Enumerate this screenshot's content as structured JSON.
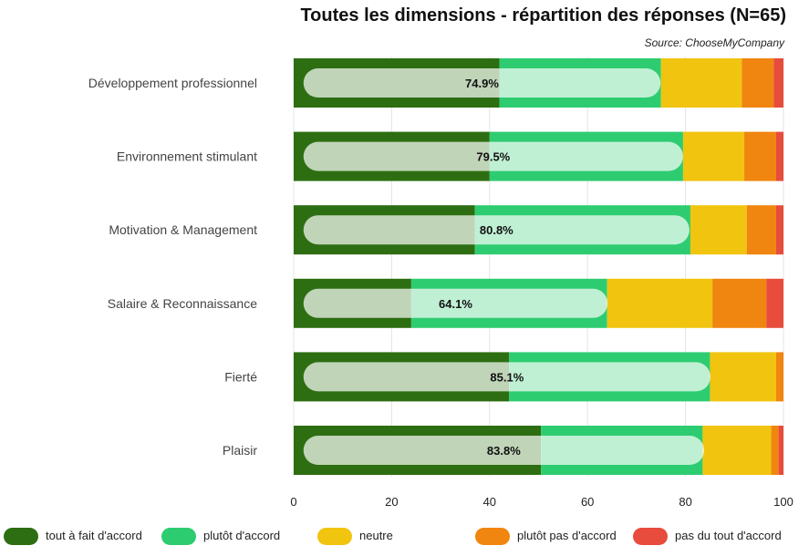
{
  "chart_data": {
    "type": "bar",
    "stacked": true,
    "orientation": "horizontal",
    "title": "Toutes les dimensions - répartition des réponses (N=65)",
    "subtitle": "Source: ChooseMyCompany",
    "xlim": [
      0,
      100
    ],
    "xticks": [
      0,
      20,
      40,
      60,
      80,
      100
    ],
    "grid": true,
    "legend_position": "bottom",
    "categories": [
      "Développement professionnel",
      "Environnement stimulant",
      "Motivation & Management",
      "Salaire & Reconnaissance",
      "Fierté",
      "Plaisir"
    ],
    "series": [
      {
        "name": "tout à fait d'accord",
        "color": "#2d6e12",
        "values": [
          42.0,
          40.0,
          37.0,
          24.0,
          44.0,
          50.5
        ]
      },
      {
        "name": "plutôt d'accord",
        "color": "#2ecc71",
        "values": [
          33.0,
          39.5,
          44.0,
          40.0,
          41.0,
          33.0
        ]
      },
      {
        "name": "neutre",
        "color": "#f1c40f",
        "values": [
          16.5,
          12.5,
          11.5,
          21.5,
          13.5,
          14.0
        ]
      },
      {
        "name": "plutôt pas d'accord",
        "color": "#f0850f",
        "values": [
          6.5,
          6.5,
          6.0,
          11.0,
          1.5,
          1.5
        ]
      },
      {
        "name": "pas du tout d'accord",
        "color": "#e74c3c",
        "values": [
          2.0,
          1.5,
          1.5,
          3.5,
          0.0,
          1.0
        ]
      }
    ],
    "positive_share": {
      "values": [
        74.9,
        79.5,
        80.8,
        64.1,
        85.1,
        83.8
      ],
      "labels": [
        "74.9%",
        "79.5%",
        "80.8%",
        "64.1%",
        "85.1%",
        "83.8%"
      ],
      "color": "#ffffff"
    }
  }
}
